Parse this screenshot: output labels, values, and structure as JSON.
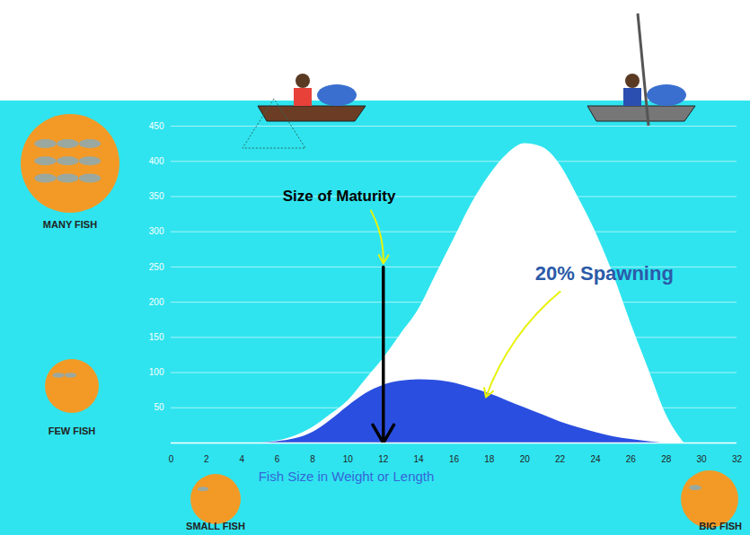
{
  "chart_data": {
    "type": "area",
    "x_label": "Fish Size in Weight or Length",
    "x": [
      5,
      6,
      7,
      8,
      9,
      10,
      11,
      12,
      13,
      14,
      15,
      16,
      17,
      18,
      19,
      20,
      21,
      22,
      23,
      24,
      25,
      26,
      27,
      28,
      29
    ],
    "series": [
      {
        "color": "#ffffff",
        "values": [
          0,
          3,
          10,
          22,
          40,
          60,
          90,
          120,
          155,
          190,
          240,
          290,
          340,
          380,
          410,
          425,
          420,
          395,
          350,
          300,
          240,
          170,
          105,
          40,
          0
        ]
      },
      {
        "color": "#2a4fe0",
        "values": [
          0,
          2,
          6,
          15,
          32,
          52,
          70,
          82,
          88,
          90,
          89,
          85,
          78,
          70,
          60,
          50,
          40,
          30,
          22,
          15,
          9,
          5,
          2,
          0,
          0
        ]
      }
    ],
    "xlim": [
      0,
      32
    ],
    "xticks": [
      0,
      2,
      4,
      6,
      8,
      10,
      12,
      14,
      16,
      18,
      20,
      22,
      24,
      26,
      28,
      30,
      32
    ],
    "ylim": [
      0,
      450
    ],
    "yticks": [
      50,
      100,
      150,
      200,
      250,
      300,
      350,
      400,
      450
    ],
    "grid": true,
    "markers": [
      {
        "x": 12,
        "y1": 250,
        "y2": 0
      }
    ],
    "annotations": [
      {
        "text": "Size of Maturity",
        "x": 9.5,
        "y": 350,
        "arrow_to": [
          12,
          255
        ]
      },
      {
        "text": "20% Spawning",
        "x": 24.5,
        "y": 240,
        "arrow_to": [
          17.8,
          65
        ]
      }
    ],
    "scale_labels": {
      "y_high": "MANY FISH",
      "y_low": "FEW FISH",
      "x_low": "SMALL FISH",
      "x_high": "BIG FISH"
    }
  }
}
